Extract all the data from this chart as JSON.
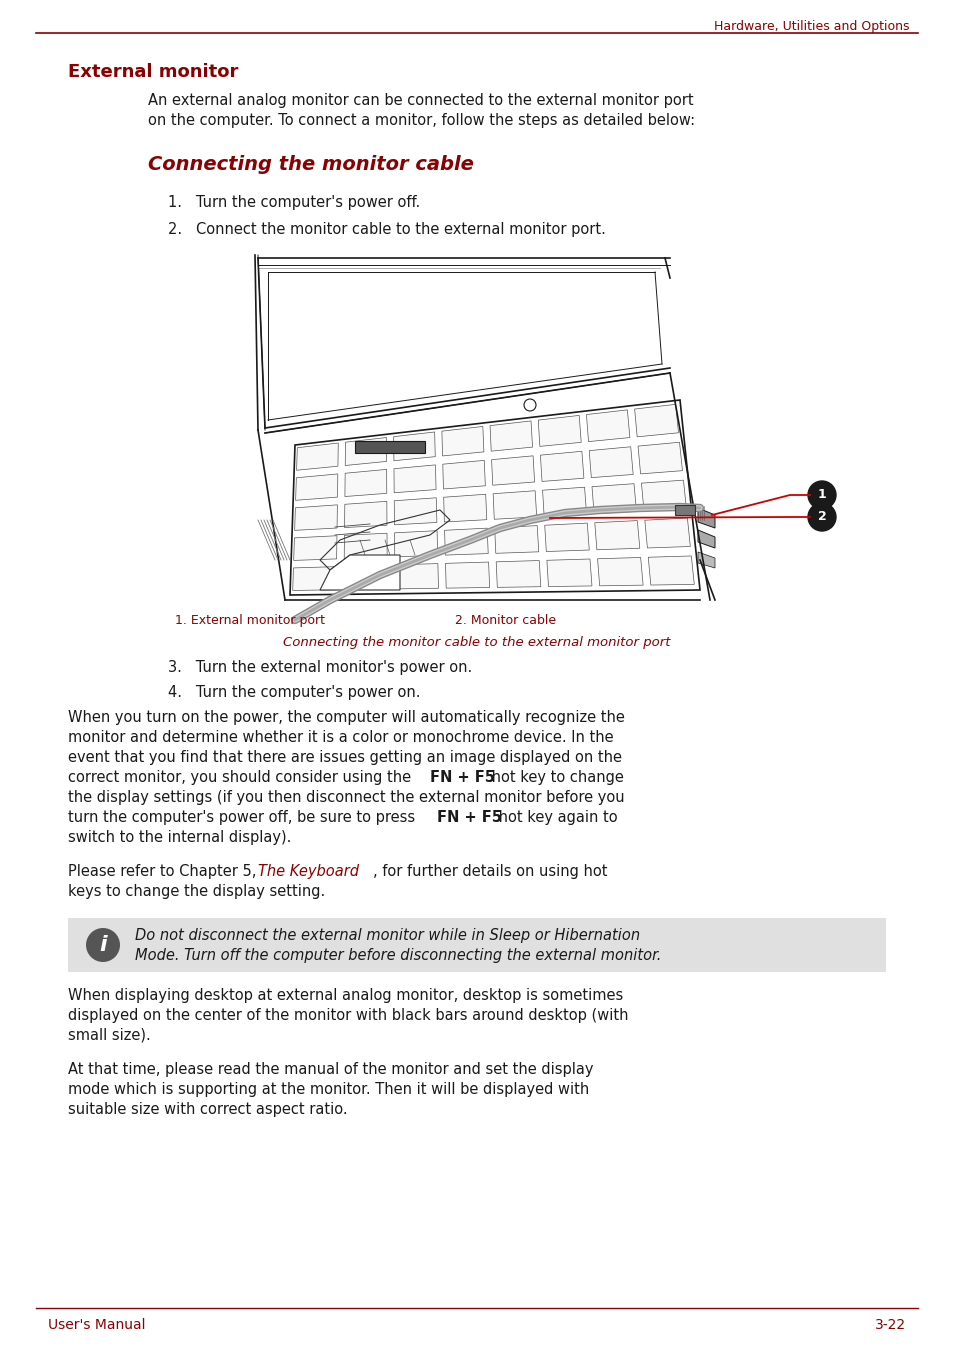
{
  "header_text": "Hardware, Utilities and Options",
  "header_color": "#8B0000",
  "header_line_color": "#8B0000",
  "section_title": "External monitor",
  "section_title_color": "#8B0000",
  "section_title_fontsize": 13,
  "body_color": "#1a1a1a",
  "subsection_title": "Connecting the monitor cable",
  "subsection_title_color": "#8B0000",
  "subsection_title_fontsize": 13,
  "intro_line1": "An external analog monitor can be connected to the external monitor port",
  "intro_line2": "on the computer. To connect a monitor, follow the steps as detailed below:",
  "step1": "1.   Turn the computer's power off.",
  "step2": "2.   Connect the monitor cable to the external monitor port.",
  "step3": "3.   Turn the external monitor's power on.",
  "step4": "4.   Turn the computer's power on.",
  "caption_left": "1. External monitor port",
  "caption_right": "2. Monitor cable",
  "caption_center": "Connecting the monitor cable to the external monitor port",
  "caption_color": "#8B0000",
  "p1_l1": "When you turn on the power, the computer will automatically recognize the",
  "p1_l2": "monitor and determine whether it is a color or monochrome device. In the",
  "p1_l3": "event that you find that there are issues getting an image displayed on the",
  "p1_l4a": "correct monitor, you should consider using the ",
  "p1_l4b": "FN + F5",
  "p1_l4c": " hot key to change",
  "p1_l5": "the display settings (if you then disconnect the external monitor before you",
  "p1_l6a": "turn the computer's power off, be sure to press ",
  "p1_l6b": "FN + F5",
  "p1_l6c": " hot key again to",
  "p1_l7": "switch to the internal display).",
  "p2_a": "Please refer to Chapter 5, ",
  "p2_link": "The Keyboard",
  "p2_c": ", for further details on using hot",
  "p2_l2": "keys to change the display setting.",
  "note_l1": "Do not disconnect the external monitor while in Sleep or Hibernation",
  "note_l2": "Mode. Turn off the computer before disconnecting the external monitor.",
  "p3_l1": "When displaying desktop at external analog monitor, desktop is sometimes",
  "p3_l2": "displayed on the center of the monitor with black bars around desktop (with",
  "p3_l3": "small size).",
  "p4_l1": "At that time, please read the manual of the monitor and set the display",
  "p4_l2": "mode which is supporting at the monitor. Then it will be displayed with",
  "p4_l3": "suitable size with correct aspect ratio.",
  "footer_left": "User's Manual",
  "footer_right": "3-22",
  "footer_color": "#8B0000",
  "bg_color": "#ffffff",
  "note_bg_color": "#e0e0e0",
  "link_color": "#8B0000"
}
